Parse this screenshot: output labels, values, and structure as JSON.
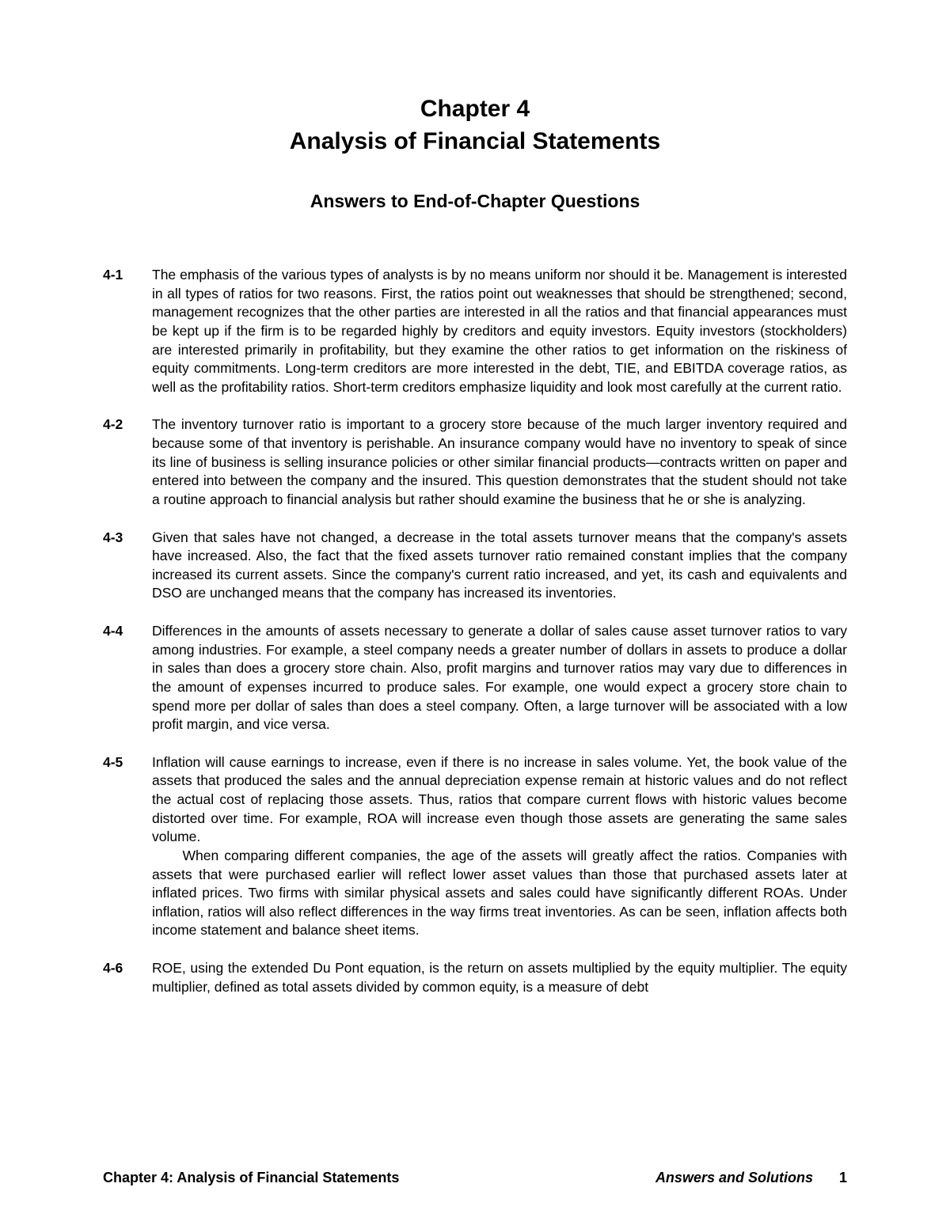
{
  "chapter": {
    "number_line": "Chapter 4",
    "title_line": "Analysis of Financial Statements"
  },
  "section_heading": "Answers to End-of-Chapter Questions",
  "questions": [
    {
      "label": "4-1",
      "paragraphs": [
        "The emphasis of the various types of analysts is by no means uniform nor should it be.  Management is interested in all types of ratios for two reasons.  First, the ratios point out weaknesses that should be strengthened; second, management recognizes that the other parties are interested in all the ratios and that financial appearances must be kept up if the firm is to be regarded highly by creditors and equity investors. Equity investors (stockholders) are interested primarily in profitability, but they examine the other ratios to get information on the riskiness of equity commitments.  Long-term creditors are more interested in the debt, TIE, and EBITDA coverage ratios, as well as the profitability ratios.  Short-term creditors emphasize liquidity and look most carefully at the current ratio."
      ]
    },
    {
      "label": "4-2",
      "paragraphs": [
        "The inventory turnover ratio is important to a grocery store because of the much larger inventory required and because some of that inventory is perishable.  An insurance company would have no inventory to speak of since its line of business is selling insurance policies or other similar financial products—contracts written on paper and entered into between the company and the insured.  This question demonstrates that the student should not take a routine approach to financial analysis but rather should examine the business that he or she is analyzing."
      ]
    },
    {
      "label": "4-3",
      "paragraphs": [
        "Given that sales have not changed, a decrease in the total assets turnover means that the company's assets have increased.  Also, the fact that the fixed assets turnover ratio remained constant implies that the company increased its current assets.  Since the company's current ratio increased, and yet, its cash and equivalents and DSO are unchanged means that the company has increased its inventories."
      ]
    },
    {
      "label": "4-4",
      "paragraphs": [
        "Differences in the amounts of assets necessary to generate a dollar of sales cause asset turnover ratios to vary among industries.  For example, a steel company needs a greater number of dollars in assets to produce a dollar in sales than does a grocery store chain.  Also, profit margins and turnover ratios may vary due to differences in the amount of expenses incurred to produce sales.  For example, one would expect a grocery store chain to spend more per dollar of sales than does a steel company.  Often, a large turnover will be associated with a low profit margin, and vice versa."
      ]
    },
    {
      "label": "4-5",
      "paragraphs": [
        "Inflation will cause earnings to increase, even if there is no increase in sales volume.  Yet, the book value of the assets that produced the sales and the annual depreciation expense remain at historic values and do not reflect the actual cost of replacing those assets.  Thus, ratios that compare current flows with historic values become distorted over time. For example, ROA will increase even though those assets are generating the same sales volume.",
        "When comparing different companies, the age of the assets will greatly affect the ratios.  Companies with assets that were purchased earlier will reflect lower asset values than those that purchased assets later at inflated prices.  Two firms with similar physical assets and sales could have significantly different ROAs.  Under inflation, ratios will also reflect differences in the way firms treat inventories.  As can be seen, inflation affects both income statement and balance sheet items."
      ]
    },
    {
      "label": "4-6",
      "paragraphs": [
        "ROE, using the extended Du Pont equation, is the return on assets multiplied by the equity multiplier.  The equity multiplier, defined as total assets divided by common equity, is a measure of debt"
      ]
    }
  ],
  "footer": {
    "left": "Chapter 4:  Analysis of Financial Statements",
    "right": "Answers and Solutions",
    "page": "1"
  }
}
